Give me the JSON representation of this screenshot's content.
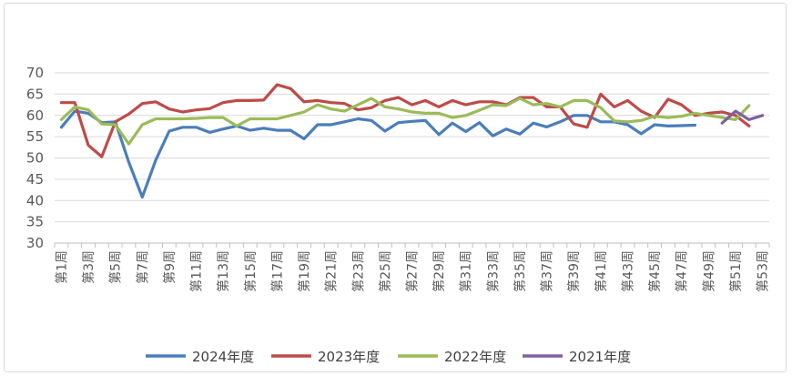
{
  "chart_data": {
    "type": "line",
    "title": "",
    "xlabel": "",
    "ylabel": "",
    "ylim": [
      30,
      70
    ],
    "yticks": [
      30,
      35,
      40,
      45,
      50,
      55,
      60,
      65,
      70
    ],
    "grid": true,
    "legend_position": "bottom",
    "categories": [
      "第1周",
      "第2周",
      "第3周",
      "第4周",
      "第5周",
      "第6周",
      "第7周",
      "第8周",
      "第9周",
      "第10周",
      "第11周",
      "第12周",
      "第13周",
      "第14周",
      "第15周",
      "第16周",
      "第17周",
      "第18周",
      "第19周",
      "第20周",
      "第21周",
      "第22周",
      "第23周",
      "第24周",
      "第25周",
      "第26周",
      "第27周",
      "第28周",
      "第29周",
      "第30周",
      "第31周",
      "第32周",
      "第33周",
      "第34周",
      "第35周",
      "第36周",
      "第37周",
      "第38周",
      "第39周",
      "第40周",
      "第41周",
      "第42周",
      "第43周",
      "第44周",
      "第45周",
      "第46周",
      "第47周",
      "第48周",
      "第49周",
      "第50周",
      "第51周",
      "第52周",
      "第53周"
    ],
    "tick_labels": [
      "第1周",
      "第3周",
      "第5周",
      "第7周",
      "第9周",
      "第11周",
      "第13周",
      "第15周",
      "第17周",
      "第19周",
      "第21周",
      "第23周",
      "第25周",
      "第27周",
      "第29周",
      "第31周",
      "第33周",
      "第35周",
      "第37周",
      "第39周",
      "第41周",
      "第43周",
      "第45周",
      "第47周",
      "第49周",
      "第51周",
      "第53周"
    ],
    "series": [
      {
        "name": "2024年度",
        "color": "#4a7ebb",
        "values": [
          57.2,
          61,
          60.5,
          58.3,
          58.5,
          49,
          40.8,
          49.5,
          56.3,
          57.2,
          57.2,
          56,
          56.8,
          57.5,
          56.5,
          57,
          56.5,
          56.5,
          54.5,
          57.8,
          57.8,
          58.5,
          59.2,
          58.8,
          56.3,
          58.3,
          58.6,
          58.8,
          55.5,
          58.2,
          56.2,
          58.3,
          55.2,
          56.8,
          55.6,
          58.2,
          57.3,
          58.5,
          60,
          60,
          58.5,
          58.5,
          57.8,
          55.7,
          57.8,
          57.5,
          57.6,
          57.7,
          null,
          null,
          null,
          null,
          null
        ]
      },
      {
        "name": "2023年度",
        "color": "#be4b48",
        "values": [
          63,
          63,
          53,
          50.3,
          58.5,
          60.3,
          62.8,
          63.2,
          61.5,
          60.8,
          61.3,
          61.6,
          63,
          63.5,
          63.5,
          63.6,
          67.2,
          66.3,
          63.2,
          63.5,
          63,
          62.8,
          61.3,
          61.8,
          63.5,
          64.2,
          62.5,
          63.5,
          62,
          63.5,
          62.5,
          63.2,
          63.2,
          62.5,
          64.2,
          64.2,
          62,
          62,
          58,
          57.2,
          65,
          62,
          63.5,
          61,
          59.5,
          63.8,
          62.5,
          60,
          60.5,
          60.8,
          60,
          57.5,
          null
        ]
      },
      {
        "name": "2022年度",
        "color": "#9bbb59",
        "values": [
          59,
          62,
          61.3,
          58,
          57.8,
          53.3,
          57.8,
          59.2,
          59.2,
          59.2,
          59.3,
          59.5,
          59.5,
          57.5,
          59.2,
          59.2,
          59.2,
          60,
          60.8,
          62.5,
          61.5,
          61,
          62.5,
          64,
          62,
          61.5,
          60.8,
          60.5,
          60.5,
          59.5,
          60,
          61.2,
          62.5,
          62.3,
          64,
          62.5,
          62.8,
          62,
          63.5,
          63.5,
          61.8,
          58.7,
          58.5,
          58.8,
          59.8,
          59.5,
          59.8,
          60.5,
          60,
          59.5,
          59,
          62.3,
          null
        ]
      },
      {
        "name": "2021年度",
        "color": "#7d60a0",
        "values": [
          null,
          null,
          null,
          null,
          null,
          null,
          null,
          null,
          null,
          null,
          null,
          null,
          null,
          null,
          null,
          null,
          null,
          null,
          null,
          null,
          null,
          null,
          null,
          null,
          null,
          null,
          null,
          null,
          null,
          null,
          null,
          null,
          null,
          null,
          null,
          null,
          null,
          null,
          null,
          null,
          null,
          null,
          null,
          null,
          null,
          null,
          null,
          null,
          null,
          58.2,
          61,
          59,
          60
        ]
      }
    ]
  }
}
